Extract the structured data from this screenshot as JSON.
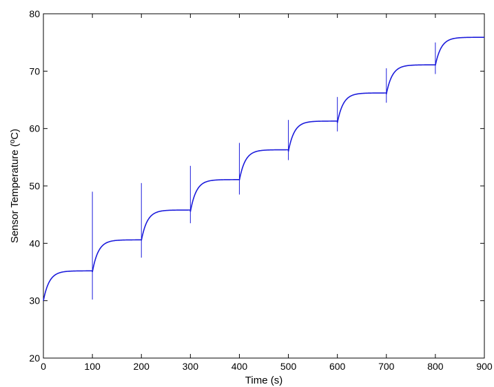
{
  "chart_data": {
    "type": "line",
    "title": "",
    "xlabel": "Time (s)",
    "ylabel": "Sensor Temperature (ºC)",
    "xlim": [
      0,
      900
    ],
    "ylim": [
      20,
      80
    ],
    "xticks": [
      0,
      100,
      200,
      300,
      400,
      500,
      600,
      700,
      800,
      900
    ],
    "yticks": [
      20,
      30,
      40,
      50,
      60,
      70,
      80
    ],
    "grid": false,
    "legend": "none",
    "series_color": "#1a1adb",
    "step_profile": {
      "segment_duration_s": 100,
      "start_values": [
        30.0,
        35.0,
        40.5,
        45.5,
        51.0,
        56.0,
        61.0,
        66.0,
        71.0
      ],
      "plateau_values": [
        35.2,
        40.6,
        45.8,
        51.1,
        56.3,
        61.3,
        66.2,
        71.1,
        75.9
      ],
      "spike_min": [
        30.2,
        37.5,
        43.5,
        48.5,
        54.5,
        59.5,
        64.5,
        69.5
      ],
      "spike_max": [
        49.0,
        50.5,
        53.5,
        57.5,
        61.5,
        65.5,
        70.5,
        75.0
      ]
    }
  }
}
